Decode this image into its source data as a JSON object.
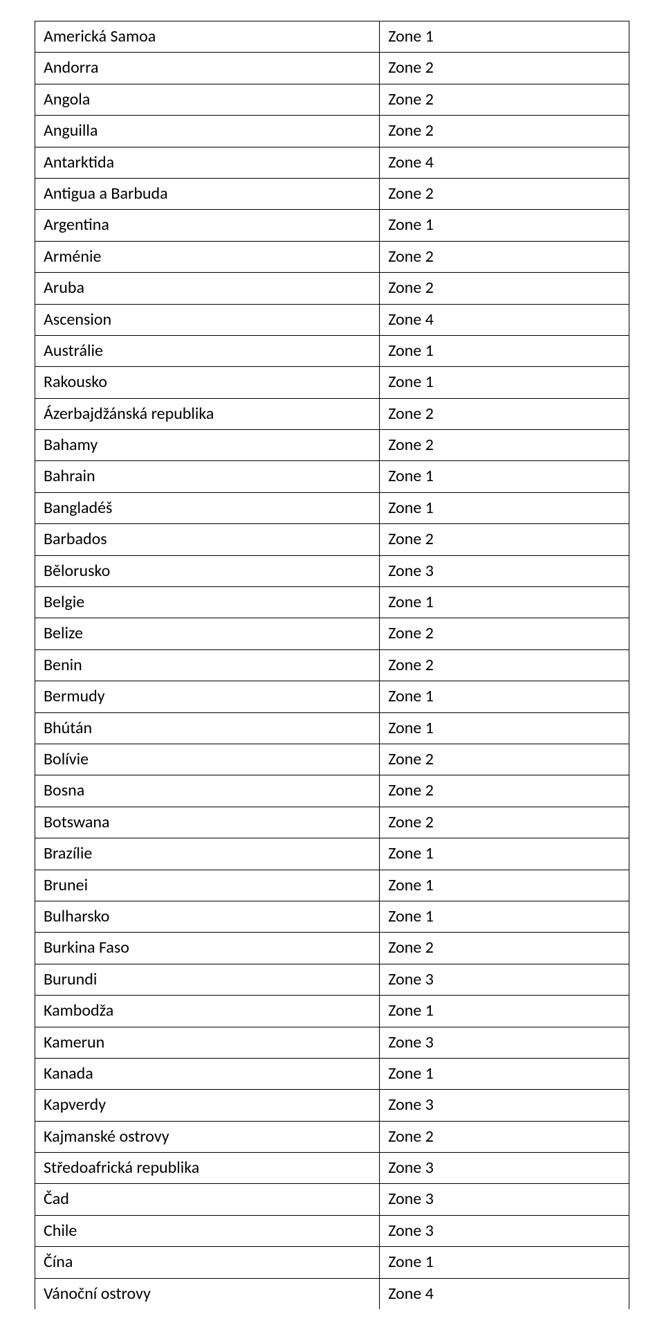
{
  "table": {
    "columns": [
      "country",
      "zone"
    ],
    "border_color": "#000000",
    "background_color": "#ffffff",
    "text_color": "#000000",
    "font_size_pt": 18,
    "col_widths_pct": [
      58,
      42
    ],
    "rows": [
      {
        "country": "Americká Samoa",
        "zone": "Zone 1"
      },
      {
        "country": "Andorra",
        "zone": "Zone 2"
      },
      {
        "country": "Angola",
        "zone": "Zone 2"
      },
      {
        "country": "Anguilla",
        "zone": "Zone 2"
      },
      {
        "country": "Antarktida",
        "zone": "Zone 4"
      },
      {
        "country": "Antigua a Barbuda",
        "zone": "Zone 2"
      },
      {
        "country": "Argentina",
        "zone": "Zone 1"
      },
      {
        "country": "Arménie",
        "zone": "Zone 2"
      },
      {
        "country": "Aruba",
        "zone": "Zone 2"
      },
      {
        "country": "Ascension",
        "zone": "Zone 4"
      },
      {
        "country": "Austrálie",
        "zone": "Zone 1"
      },
      {
        "country": "Rakousko",
        "zone": "Zone 1"
      },
      {
        "country": "Ázerbajdžánská republika",
        "zone": "Zone 2"
      },
      {
        "country": "Bahamy",
        "zone": "Zone 2"
      },
      {
        "country": "Bahrain",
        "zone": "Zone 1"
      },
      {
        "country": "Bangladéš",
        "zone": "Zone 1"
      },
      {
        "country": "Barbados",
        "zone": "Zone 2"
      },
      {
        "country": "Bělorusko",
        "zone": "Zone 3"
      },
      {
        "country": "Belgie",
        "zone": "Zone 1"
      },
      {
        "country": "Belize",
        "zone": "Zone 2"
      },
      {
        "country": "Benin",
        "zone": "Zone 2"
      },
      {
        "country": "Bermudy",
        "zone": "Zone 1"
      },
      {
        "country": "Bhútán",
        "zone": "Zone 1"
      },
      {
        "country": "Bolívie",
        "zone": "Zone 2"
      },
      {
        "country": "Bosna",
        "zone": "Zone 2"
      },
      {
        "country": "Botswana",
        "zone": "Zone 2"
      },
      {
        "country": "Brazílie",
        "zone": "Zone 1"
      },
      {
        "country": "Brunei",
        "zone": "Zone 1"
      },
      {
        "country": "Bulharsko",
        "zone": "Zone 1"
      },
      {
        "country": "Burkina Faso",
        "zone": "Zone 2"
      },
      {
        "country": "Burundi",
        "zone": "Zone 3"
      },
      {
        "country": "Kambodža",
        "zone": "Zone 1"
      },
      {
        "country": "Kamerun",
        "zone": "Zone 3"
      },
      {
        "country": "Kanada",
        "zone": "Zone 1"
      },
      {
        "country": "Kapverdy",
        "zone": "Zone 3"
      },
      {
        "country": "Kajmanské ostrovy",
        "zone": "Zone 2"
      },
      {
        "country": "Středoafrická republika",
        "zone": "Zone 3"
      },
      {
        "country": "Čad",
        "zone": "Zone 3"
      },
      {
        "country": "Chile",
        "zone": "Zone 3"
      },
      {
        "country": "Čína",
        "zone": "Zone 1"
      },
      {
        "country": "Vánoční ostrovy",
        "zone": "Zone 4"
      }
    ]
  }
}
